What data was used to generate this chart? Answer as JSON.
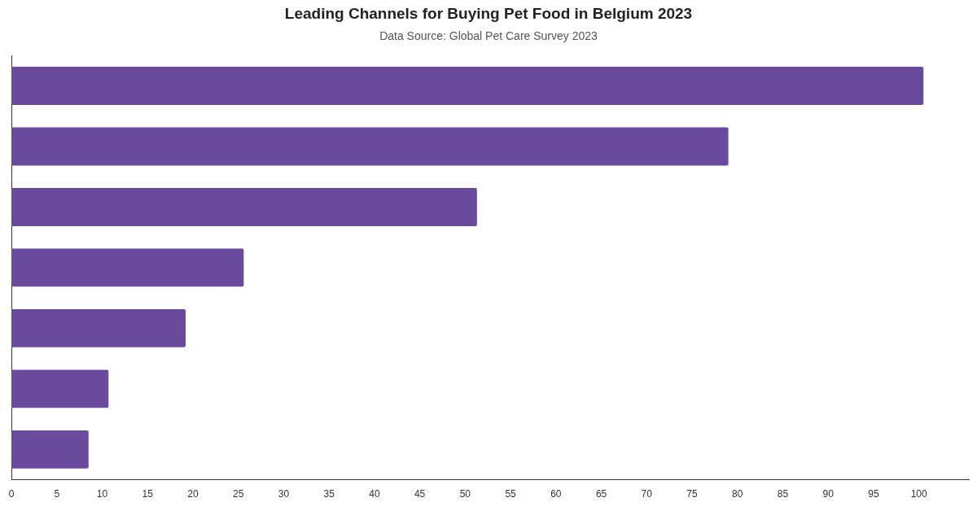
{
  "chart_data": {
    "type": "bar",
    "orientation": "horizontal",
    "title": "Leading Channels for Buying Pet Food in Belgium 2023",
    "subtitle": "Data Source: Global Pet Care Survey 2023",
    "categories": [
      null,
      null,
      null,
      null,
      null,
      null,
      null
    ],
    "values": [
      100.5,
      79,
      51.3,
      25.6,
      19.2,
      10.7,
      8.5
    ],
    "color": "#6a4a9c",
    "xlim": [
      0,
      105.5
    ],
    "xticks": [
      0,
      5,
      10,
      15,
      20,
      25,
      30,
      35,
      40,
      45,
      50,
      55,
      60,
      65,
      70,
      75,
      80,
      85,
      90,
      95,
      100
    ],
    "grid": false,
    "legend": false
  }
}
